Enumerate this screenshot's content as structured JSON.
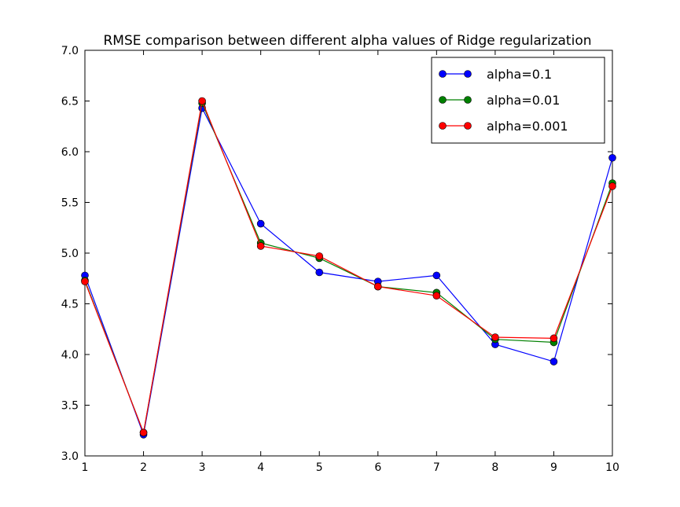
{
  "chart_data": {
    "type": "line",
    "title": "RMSE comparison between different alpha values of Ridge regularization",
    "xlabel": "",
    "ylabel": "",
    "x": [
      1,
      2,
      3,
      4,
      5,
      6,
      7,
      8,
      9,
      10
    ],
    "xlim": [
      1,
      10
    ],
    "ylim": [
      3.0,
      7.0
    ],
    "xticks": [
      "1",
      "2",
      "3",
      "4",
      "5",
      "6",
      "7",
      "8",
      "9",
      "10"
    ],
    "yticks": [
      "3.0",
      "3.5",
      "4.0",
      "4.5",
      "5.0",
      "5.5",
      "6.0",
      "6.5",
      "7.0"
    ],
    "grid": false,
    "legend_position": "top-right",
    "series": [
      {
        "name": "alpha=0.1",
        "color": "#0000ff",
        "values": [
          4.78,
          3.21,
          6.43,
          5.29,
          4.81,
          4.72,
          4.78,
          4.1,
          3.93,
          5.94
        ]
      },
      {
        "name": "alpha=0.01",
        "color": "#008000",
        "values": [
          4.73,
          3.23,
          6.48,
          5.1,
          4.95,
          4.67,
          4.61,
          4.15,
          4.12,
          5.69
        ]
      },
      {
        "name": "alpha=0.001",
        "color": "#ff0000",
        "values": [
          4.72,
          3.23,
          6.5,
          5.07,
          4.97,
          4.67,
          4.58,
          4.17,
          4.16,
          5.66
        ]
      }
    ]
  }
}
